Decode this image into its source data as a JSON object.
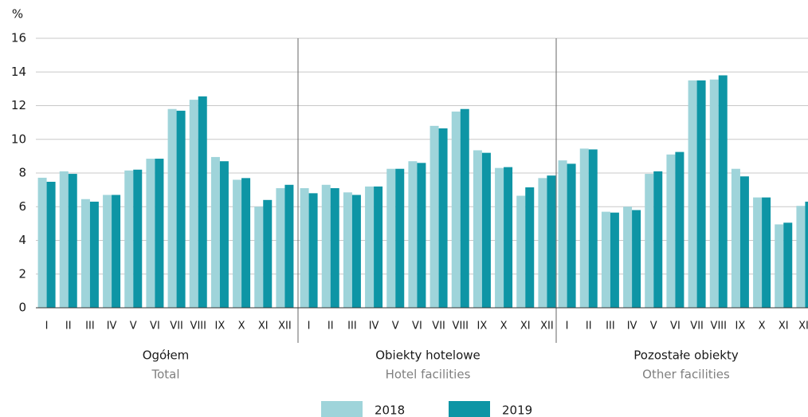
{
  "chart_data": {
    "type": "bar",
    "y_label": "%",
    "ylim": [
      0,
      16
    ],
    "yticks": [
      0,
      2,
      4,
      6,
      8,
      10,
      12,
      14,
      16
    ],
    "grid": true,
    "series": [
      {
        "name": "2018",
        "color": "#9fd4da"
      },
      {
        "name": "2019",
        "color": "#0e95a5"
      }
    ],
    "panels": [
      {
        "title": "Ogółem",
        "subtitle": "Total",
        "categories": [
          "I",
          "II",
          "III",
          "IV",
          "V",
          "VI",
          "VII",
          "VIII",
          "IX",
          "X",
          "XI",
          "XII"
        ],
        "values": [
          [
            7.72,
            8.1,
            6.45,
            6.7,
            8.15,
            8.85,
            11.8,
            12.35,
            8.95,
            7.6,
            6.0,
            7.1
          ],
          [
            7.48,
            7.95,
            6.3,
            6.7,
            8.2,
            8.85,
            11.7,
            12.55,
            8.7,
            7.7,
            6.4,
            7.3
          ]
        ]
      },
      {
        "title": "Obiekty hotelowe",
        "subtitle": "Hotel facilities",
        "categories": [
          "I",
          "II",
          "III",
          "IV",
          "V",
          "VI",
          "VII",
          "VIII",
          "IX",
          "X",
          "XI",
          "XII"
        ],
        "values": [
          [
            7.1,
            7.3,
            6.85,
            7.2,
            8.25,
            8.7,
            10.8,
            11.65,
            9.35,
            8.3,
            6.65,
            7.7
          ],
          [
            6.8,
            7.1,
            6.7,
            7.2,
            8.25,
            8.6,
            10.65,
            11.8,
            9.2,
            8.35,
            7.15,
            7.85
          ]
        ]
      },
      {
        "title": "Pozostałe obiekty",
        "subtitle": "Other facilities",
        "categories": [
          "I",
          "II",
          "III",
          "IV",
          "V",
          "VI",
          "VII",
          "VIII",
          "IX",
          "X",
          "XI",
          "XII"
        ],
        "values": [
          [
            8.75,
            9.45,
            5.7,
            6.0,
            7.95,
            9.1,
            13.5,
            13.55,
            8.25,
            6.55,
            4.95,
            6.05
          ],
          [
            8.55,
            9.4,
            5.65,
            5.8,
            8.1,
            9.25,
            13.5,
            13.8,
            7.8,
            6.55,
            5.05,
            6.3
          ]
        ]
      }
    ]
  }
}
